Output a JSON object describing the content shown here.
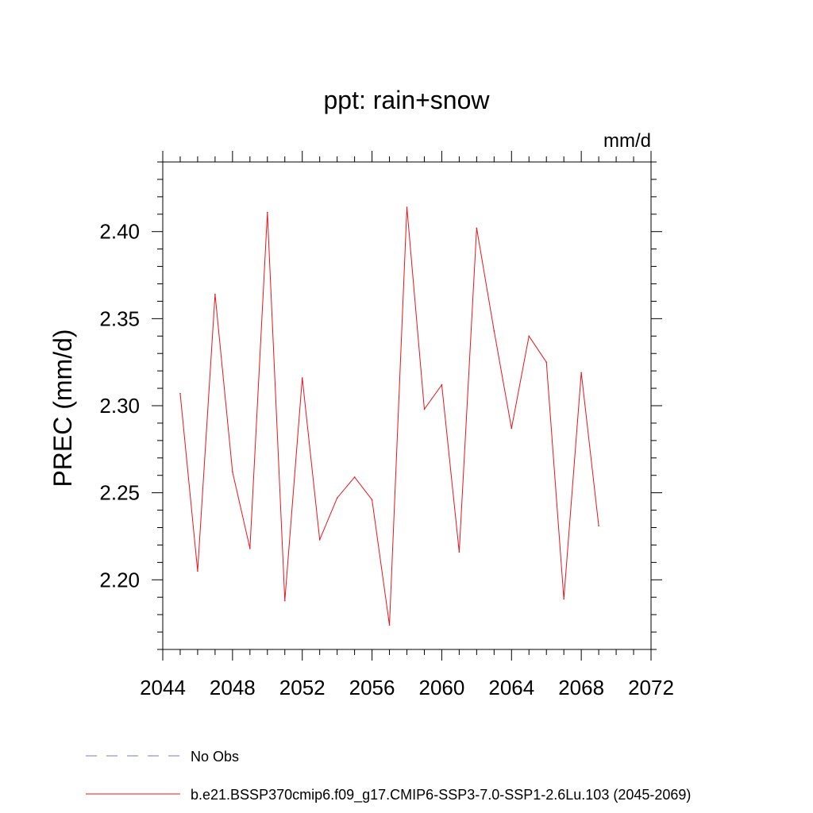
{
  "chart_data": {
    "type": "line",
    "title": "ppt: rain+snow",
    "units_label": "mm/d",
    "xlabel": "",
    "ylabel": "PREC  (mm/d)",
    "xlim": [
      2044,
      2072
    ],
    "ylim": [
      2.16,
      2.44
    ],
    "xticks": [
      2044,
      2048,
      2052,
      2056,
      2060,
      2064,
      2068,
      2072
    ],
    "xtick_labels": [
      "2044",
      "2048",
      "2052",
      "2056",
      "2060",
      "2064",
      "2068",
      "2072"
    ],
    "yticks": [
      2.2,
      2.25,
      2.3,
      2.35,
      2.4
    ],
    "ytick_labels": [
      "2.20",
      "2.25",
      "2.30",
      "2.35",
      "2.40"
    ],
    "grid": false,
    "legend_position": "bottom",
    "series": [
      {
        "name": "No Obs",
        "color": "#7b78c4",
        "style": "dashed",
        "x": [],
        "values": []
      },
      {
        "name": "b.e21.BSSP370cmip6.f09_g17.CMIP6-SSP3-7.0-SSP1-2.6Lu.103 (2045-2069)",
        "color": "#e8141c",
        "style": "solid",
        "x": [
          2045,
          2046,
          2047,
          2048,
          2049,
          2050,
          2051,
          2052,
          2053,
          2054,
          2055,
          2056,
          2057,
          2058,
          2059,
          2060,
          2061,
          2062,
          2063,
          2064,
          2065,
          2066,
          2067,
          2068,
          2069
        ],
        "values": [
          2.307,
          2.205,
          2.364,
          2.262,
          2.218,
          2.411,
          2.188,
          2.316,
          2.223,
          2.247,
          2.259,
          2.246,
          2.174,
          2.414,
          2.298,
          2.312,
          2.216,
          2.402,
          2.343,
          2.287,
          2.34,
          2.325,
          2.189,
          2.319,
          2.231
        ]
      }
    ]
  }
}
